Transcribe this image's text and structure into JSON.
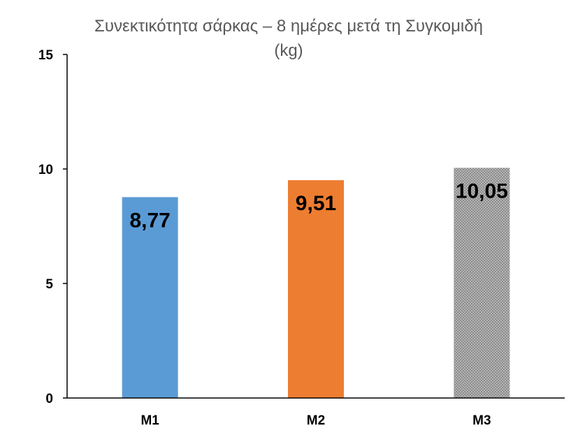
{
  "chart_data": {
    "type": "bar",
    "title": "Συνεκτικότητα σάρκας – 8 ημέρες μετά τη Συγκομιδή (kg)",
    "title_lines": [
      "Συνεκτικότητα σάρκας – 8 ημέρες μετά τη Συγκομιδή",
      "(kg)"
    ],
    "categories": [
      "M1",
      "M2",
      "M3"
    ],
    "values": [
      8.77,
      9.51,
      10.05
    ],
    "data_labels": [
      "8,77",
      "9,51",
      "10,05"
    ],
    "bar_colors": [
      "#5B9BD5",
      "#ED7D31",
      "#A5A5A5"
    ],
    "bar_patterns": [
      "solid",
      "solid",
      "dotted"
    ],
    "ylim": [
      0,
      15
    ],
    "yticks": [
      0,
      5,
      10,
      15
    ],
    "xlabel": "",
    "ylabel": "",
    "grid": false,
    "legend": "none"
  }
}
